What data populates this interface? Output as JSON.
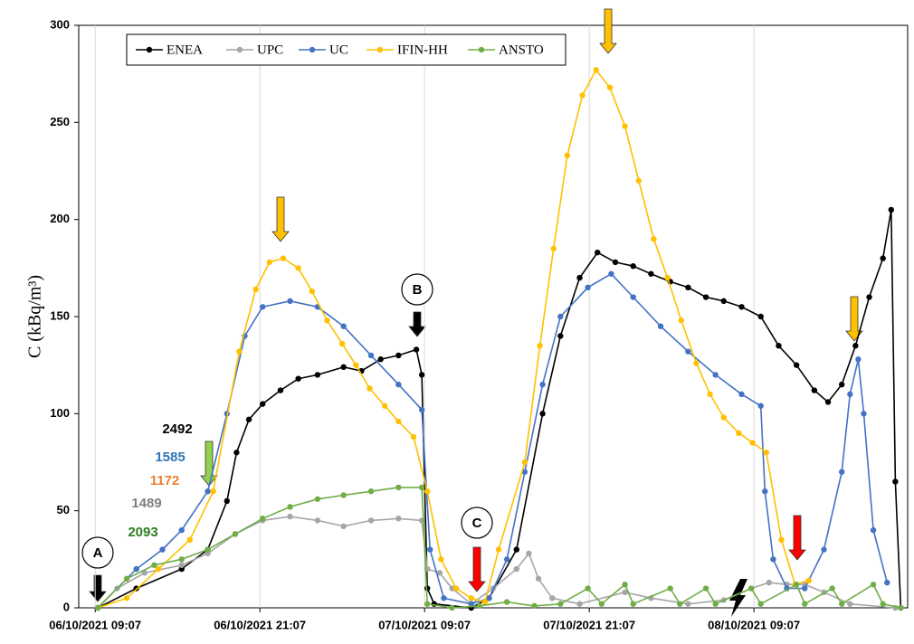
{
  "chart_data": {
    "type": "line",
    "y_label": "C (kBq/m³)",
    "xlim": [
      -1.2,
      59.2
    ],
    "ylim": [
      0,
      300
    ],
    "xticks": [
      {
        "value": 0,
        "label": "06/10/2021 09:07"
      },
      {
        "value": 12,
        "label": "06/10/2021 21:07"
      },
      {
        "value": 24,
        "label": "07/10/2021 09:07"
      },
      {
        "value": 36,
        "label": "07/10/2021 21:07"
      },
      {
        "value": 48,
        "label": "08/10/2021 09:07"
      }
    ],
    "yticks": [
      0,
      50,
      100,
      150,
      200,
      250,
      300
    ],
    "grid": "x",
    "legend": "top-left",
    "series": [
      {
        "name": "ENEA",
        "color": "#000000",
        "x": [
          0.2,
          3.0,
          6.3,
          8.2,
          9.6,
          10.3,
          11.2,
          12.2,
          13.5,
          14.8,
          16.2,
          18.1,
          19.4,
          20.8,
          22.1,
          23.4,
          23.8,
          24.2,
          24.7,
          27.4,
          28.7,
          30.7,
          32.6,
          33.9,
          35.3,
          36.6,
          37.9,
          39.2,
          40.5,
          41.9,
          43.2,
          44.5,
          45.8,
          47.1,
          48.5,
          49.8,
          51.1,
          52.4,
          53.4,
          54.4,
          55.4,
          56.4,
          57.4,
          58.0,
          58.3,
          58.7
        ],
        "values": [
          0,
          10,
          20,
          30,
          55,
          80,
          97,
          105,
          112,
          118,
          120,
          124,
          122,
          128,
          130,
          133,
          120,
          10,
          2,
          0,
          5,
          30,
          100,
          140,
          170,
          183,
          178,
          176,
          172,
          168,
          165,
          160,
          158,
          155,
          150,
          135,
          125,
          112,
          106,
          115,
          135,
          160,
          180,
          205,
          65,
          0
        ]
      },
      {
        "name": "UPC",
        "color": "#a6a6a6",
        "x": [
          0.2,
          1.6,
          3.6,
          6.3,
          8.2,
          10.2,
          12.2,
          14.2,
          16.2,
          18.1,
          20.1,
          22.1,
          23.8,
          24.2,
          25.1,
          26.0,
          27.4,
          29.0,
          30.7,
          31.6,
          32.3,
          33.3,
          35.3,
          38.6,
          40.5,
          43.2,
          45.8,
          47.8,
          49.1,
          50.4,
          51.7,
          53.1,
          55.0,
          58.3
        ],
        "values": [
          0,
          10,
          18,
          22,
          28,
          38,
          45,
          47,
          45,
          42,
          45,
          46,
          45,
          20,
          18,
          10,
          2,
          10,
          20,
          28,
          15,
          5,
          2,
          8,
          5,
          2,
          4,
          10,
          13,
          12,
          12,
          8,
          2,
          0
        ]
      },
      {
        "name": "UC",
        "color": "#4472c4",
        "x": [
          0.2,
          3.0,
          4.9,
          6.3,
          8.2,
          9.6,
          10.9,
          12.2,
          14.2,
          16.2,
          18.1,
          20.1,
          22.1,
          23.8,
          24.4,
          25.4,
          27.4,
          28.7,
          30.0,
          31.3,
          32.6,
          33.9,
          35.9,
          37.6,
          39.2,
          41.2,
          43.2,
          45.2,
          47.1,
          48.5,
          48.8,
          49.4,
          50.4,
          51.7,
          53.1,
          54.4,
          55.0,
          55.6,
          56.0,
          56.7,
          57.7
        ],
        "values": [
          0,
          20,
          30,
          40,
          60,
          100,
          140,
          155,
          158,
          155,
          145,
          130,
          115,
          102,
          30,
          5,
          2,
          5,
          25,
          70,
          115,
          150,
          165,
          172,
          160,
          145,
          132,
          120,
          110,
          104,
          60,
          25,
          10,
          10,
          30,
          70,
          110,
          128,
          100,
          40,
          13
        ]
      },
      {
        "name": "IFIN-HH",
        "color": "#ffc000",
        "x": [
          0.2,
          2.3,
          4.6,
          6.9,
          8.6,
          10.5,
          11.7,
          12.7,
          13.7,
          14.8,
          15.8,
          16.9,
          18.0,
          19.0,
          20.0,
          21.1,
          22.1,
          23.2,
          24.2,
          25.2,
          26.3,
          27.4,
          28.4,
          29.4,
          31.3,
          32.4,
          33.4,
          34.4,
          35.5,
          36.5,
          37.5,
          38.6,
          39.6,
          40.7,
          41.7,
          42.7,
          43.8,
          44.8,
          45.8,
          46.9,
          47.9,
          48.9,
          50.0,
          51.0,
          52.0
        ],
        "values": [
          0,
          5,
          20,
          35,
          60,
          132,
          164,
          178,
          180,
          175,
          163,
          148,
          136,
          125,
          113,
          104,
          96,
          88,
          60,
          25,
          10,
          5,
          3,
          30,
          75,
          135,
          185,
          233,
          264,
          277,
          268,
          248,
          220,
          190,
          170,
          148,
          126,
          110,
          98,
          90,
          85,
          80,
          35,
          12,
          14
        ]
      },
      {
        "name": "ANSTO",
        "color": "#70ad47",
        "x": [
          0.2,
          2.3,
          4.3,
          6.3,
          8.2,
          10.2,
          12.2,
          14.2,
          16.2,
          18.1,
          20.1,
          22.1,
          23.8,
          24.2,
          26.0,
          28.0,
          30.0,
          32.0,
          33.9,
          35.9,
          36.9,
          38.6,
          39.2,
          41.9,
          42.6,
          44.5,
          45.2,
          47.8,
          48.5,
          51.1,
          51.7,
          53.7,
          54.4,
          56.7,
          57.4,
          58.7
        ],
        "values": [
          0,
          15,
          22,
          25,
          30,
          38,
          46,
          52,
          56,
          58,
          60,
          62,
          62,
          2,
          0,
          1,
          3,
          1,
          2,
          10,
          2,
          12,
          2,
          10,
          2,
          10,
          2,
          10,
          2,
          12,
          2,
          10,
          2,
          12,
          2,
          0
        ]
      }
    ],
    "annotations": [
      "A",
      "B",
      "C"
    ],
    "counts": [
      {
        "text": "2492",
        "color": "#000000"
      },
      {
        "text": "1585",
        "color": "#2e75b6"
      },
      {
        "text": "1172",
        "color": "#ed7d31"
      },
      {
        "text": "1489",
        "color": "#808080"
      },
      {
        "text": "2093",
        "color": "#2e7d1e"
      }
    ]
  }
}
